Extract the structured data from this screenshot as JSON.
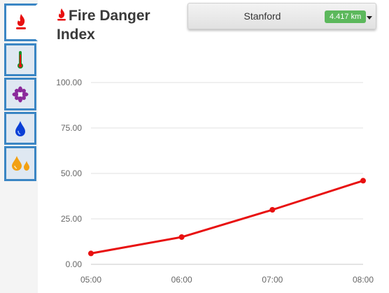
{
  "title": "Fire Danger Index",
  "station": {
    "name": "Stanford",
    "distance": "4.417 km"
  },
  "tabs": [
    {
      "icon": "fire-icon",
      "active": true
    },
    {
      "icon": "thermometer-icon",
      "active": false
    },
    {
      "icon": "flower-icon",
      "active": false
    },
    {
      "icon": "water-drop-icon",
      "active": false
    },
    {
      "icon": "fuel-drops-icon",
      "active": false
    }
  ],
  "colors": {
    "line": "#e81010",
    "tab_border": "#3b86c4",
    "badge": "#5cb85c"
  },
  "chart_data": {
    "type": "line",
    "categories": [
      "05:00",
      "06:00",
      "07:00",
      "08:00"
    ],
    "series": [
      {
        "values": [
          6,
          15,
          30,
          46
        ]
      }
    ],
    "yticks": [
      "0.00",
      "25.00",
      "50.00",
      "75.00",
      "100.00"
    ],
    "ylim": [
      0,
      100
    ],
    "grid": true
  }
}
